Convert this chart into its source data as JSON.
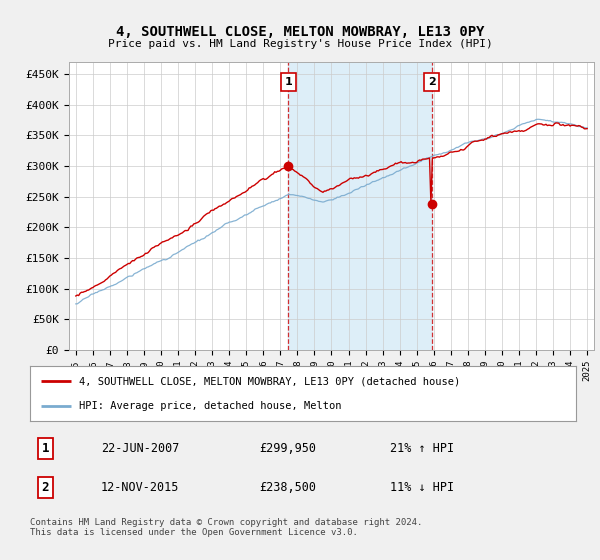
{
  "title": "4, SOUTHWELL CLOSE, MELTON MOWBRAY, LE13 0PY",
  "subtitle": "Price paid vs. HM Land Registry's House Price Index (HPI)",
  "ylim": [
    0,
    470000
  ],
  "yticks": [
    0,
    50000,
    100000,
    150000,
    200000,
    250000,
    300000,
    350000,
    400000,
    450000
  ],
  "ytick_labels": [
    "£0",
    "£50K",
    "£100K",
    "£150K",
    "£200K",
    "£250K",
    "£300K",
    "£350K",
    "£400K",
    "£450K"
  ],
  "sale1_date": "22-JUN-2007",
  "sale1_price": 299950,
  "sale1_hpi_pct": "21% ↑ HPI",
  "sale2_date": "12-NOV-2015",
  "sale2_price": 238500,
  "sale2_hpi_pct": "11% ↓ HPI",
  "sale1_x": 2007.47,
  "sale2_x": 2015.87,
  "property_color": "#cc0000",
  "hpi_color": "#7aabcf",
  "vline_color": "#cc0000",
  "shading_color": "#ddeef8",
  "background_color": "#f0f0f0",
  "plot_bg_color": "#ffffff",
  "legend_label_property": "4, SOUTHWELL CLOSE, MELTON MOWBRAY, LE13 0PY (detached house)",
  "legend_label_hpi": "HPI: Average price, detached house, Melton",
  "footer_text": "Contains HM Land Registry data © Crown copyright and database right 2024.\nThis data is licensed under the Open Government Licence v3.0.",
  "marker_box_color": "#cc0000"
}
